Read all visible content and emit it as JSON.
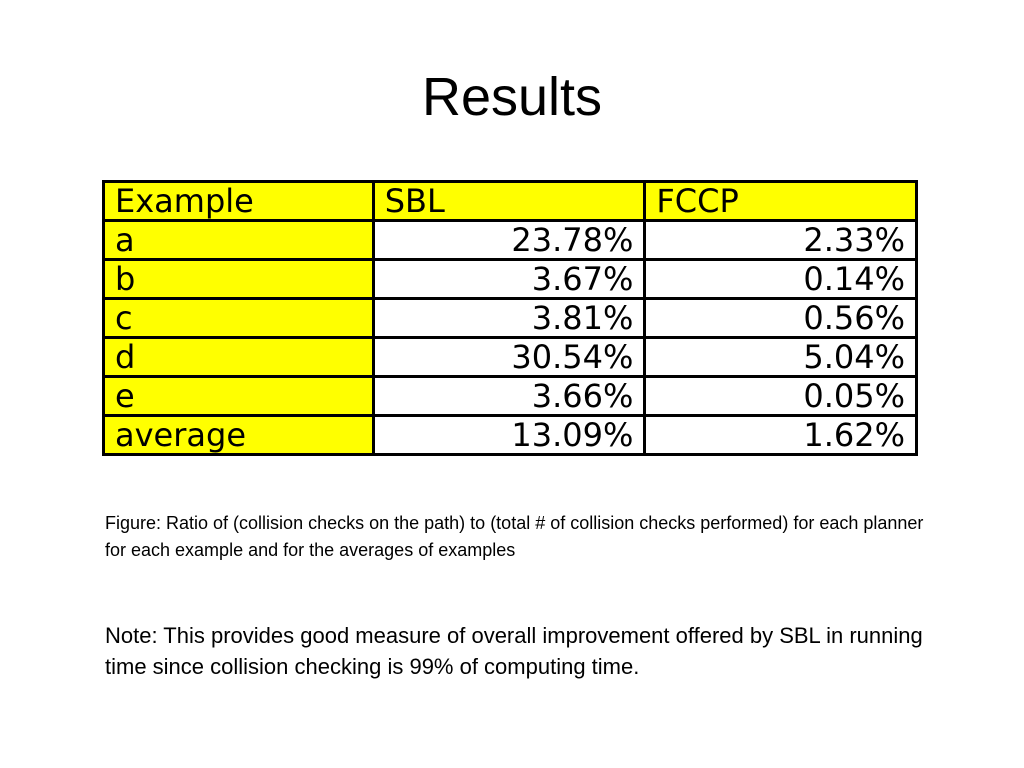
{
  "slide": {
    "title": "Results"
  },
  "table": {
    "headers": [
      "Example",
      "SBL",
      "FCCP"
    ],
    "rows": [
      {
        "example": "a",
        "sbl": "23.78%",
        "fccp": "2.33%"
      },
      {
        "example": "b",
        "sbl": "3.67%",
        "fccp": "0.14%"
      },
      {
        "example": "c",
        "sbl": "3.81%",
        "fccp": "0.56%"
      },
      {
        "example": "d",
        "sbl": "30.54%",
        "fccp": "5.04%"
      },
      {
        "example": "e",
        "sbl": "3.66%",
        "fccp": "0.05%"
      },
      {
        "example": "average",
        "sbl": "13.09%",
        "fccp": "1.62%"
      }
    ],
    "header_color": "#ffff00",
    "cell_color": "#ffffff"
  },
  "caption": "Figure: Ratio of (collision checks on the path) to (total # of collision checks performed) for each planner for each example and for the averages of examples",
  "note": "Note: This provides good measure of overall improvement offered by SBL in running time since collision checking is 99% of computing time."
}
